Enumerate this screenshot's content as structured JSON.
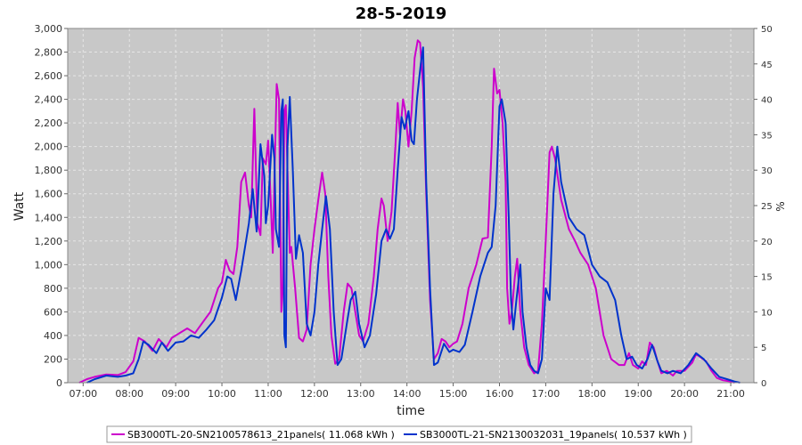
{
  "chart_data": {
    "type": "line",
    "title": "28-5-2019",
    "xlabel": "time",
    "ylabel": "Watt",
    "y2label": "%",
    "xlim": [
      "06:40",
      "21:30"
    ],
    "ylim": [
      0,
      3000
    ],
    "y2lim": [
      0,
      50
    ],
    "grid": true,
    "legend_position": "bottom",
    "x_ticks": [
      "07:00",
      "08:00",
      "09:00",
      "10:00",
      "11:00",
      "12:00",
      "13:00",
      "14:00",
      "15:00",
      "16:00",
      "17:00",
      "18:00",
      "19:00",
      "20:00",
      "21:00"
    ],
    "y_ticks": [
      "0",
      "200",
      "400",
      "600",
      "800",
      "1,000",
      "1,200",
      "1,400",
      "1,600",
      "1,800",
      "2,000",
      "2,200",
      "2,400",
      "2,600",
      "2,800",
      "3,000"
    ],
    "y2_ticks": [
      "0",
      "5",
      "10",
      "15",
      "20",
      "25",
      "30",
      "35",
      "40",
      "45",
      "50"
    ],
    "colors": {
      "plot_background": "#c8c8c8",
      "grid": "#e6e6e6"
    },
    "series": [
      {
        "name": "SB3000TL-20-SN2100578613_21panels( 11.068 kWh )",
        "color": "#cc00cc",
        "points": [
          [
            "06:55",
            0
          ],
          [
            "07:05",
            30
          ],
          [
            "07:15",
            50
          ],
          [
            "07:30",
            70
          ],
          [
            "07:45",
            65
          ],
          [
            "07:55",
            90
          ],
          [
            "08:05",
            180
          ],
          [
            "08:12",
            380
          ],
          [
            "08:20",
            350
          ],
          [
            "08:30",
            270
          ],
          [
            "08:38",
            370
          ],
          [
            "08:48",
            300
          ],
          [
            "08:55",
            380
          ],
          [
            "09:05",
            420
          ],
          [
            "09:15",
            460
          ],
          [
            "09:25",
            420
          ],
          [
            "09:35",
            510
          ],
          [
            "09:45",
            600
          ],
          [
            "09:55",
            800
          ],
          [
            "10:00",
            850
          ],
          [
            "10:05",
            1040
          ],
          [
            "10:10",
            950
          ],
          [
            "10:15",
            920
          ],
          [
            "10:20",
            1150
          ],
          [
            "10:25",
            1700
          ],
          [
            "10:30",
            1780
          ],
          [
            "10:35",
            1500
          ],
          [
            "10:38",
            1400
          ],
          [
            "10:42",
            2320
          ],
          [
            "10:46",
            1350
          ],
          [
            "10:50",
            1250
          ],
          [
            "10:53",
            1900
          ],
          [
            "10:57",
            1850
          ],
          [
            "11:00",
            2050
          ],
          [
            "11:03",
            1600
          ],
          [
            "11:06",
            1100
          ],
          [
            "11:08",
            1700
          ],
          [
            "11:11",
            2530
          ],
          [
            "11:14",
            2400
          ],
          [
            "11:17",
            600
          ],
          [
            "11:19",
            800
          ],
          [
            "11:21",
            2300
          ],
          [
            "11:23",
            2350
          ],
          [
            "11:25",
            1800
          ],
          [
            "11:28",
            1100
          ],
          [
            "11:30",
            1150
          ],
          [
            "11:35",
            800
          ],
          [
            "11:40",
            380
          ],
          [
            "11:45",
            350
          ],
          [
            "11:50",
            450
          ],
          [
            "11:55",
            1000
          ],
          [
            "12:00",
            1300
          ],
          [
            "12:05",
            1550
          ],
          [
            "12:10",
            1780
          ],
          [
            "12:14",
            1600
          ],
          [
            "12:18",
            900
          ],
          [
            "12:22",
            400
          ],
          [
            "12:27",
            160
          ],
          [
            "12:32",
            200
          ],
          [
            "12:38",
            600
          ],
          [
            "12:43",
            840
          ],
          [
            "12:48",
            800
          ],
          [
            "12:53",
            600
          ],
          [
            "12:58",
            400
          ],
          [
            "13:03",
            350
          ],
          [
            "13:10",
            500
          ],
          [
            "13:17",
            900
          ],
          [
            "13:22",
            1300
          ],
          [
            "13:27",
            1560
          ],
          [
            "13:30",
            1500
          ],
          [
            "13:35",
            1200
          ],
          [
            "13:40",
            1450
          ],
          [
            "13:45",
            2000
          ],
          [
            "13:48",
            2370
          ],
          [
            "13:51",
            2100
          ],
          [
            "13:55",
            2400
          ],
          [
            "13:58",
            2300
          ],
          [
            "14:02",
            2000
          ],
          [
            "14:06",
            2300
          ],
          [
            "14:10",
            2750
          ],
          [
            "14:14",
            2900
          ],
          [
            "14:17",
            2880
          ],
          [
            "14:21",
            2500
          ],
          [
            "14:25",
            1600
          ],
          [
            "14:30",
            700
          ],
          [
            "14:35",
            200
          ],
          [
            "14:40",
            250
          ],
          [
            "14:45",
            370
          ],
          [
            "14:50",
            350
          ],
          [
            "14:55",
            300
          ],
          [
            "15:00",
            330
          ],
          [
            "15:05",
            350
          ],
          [
            "15:12",
            500
          ],
          [
            "15:20",
            800
          ],
          [
            "15:30",
            1000
          ],
          [
            "15:38",
            1220
          ],
          [
            "15:45",
            1230
          ],
          [
            "15:50",
            2000
          ],
          [
            "15:53",
            2660
          ],
          [
            "15:57",
            2450
          ],
          [
            "16:00",
            2480
          ],
          [
            "16:04",
            2200
          ],
          [
            "16:08",
            1700
          ],
          [
            "16:10",
            800
          ],
          [
            "16:13",
            500
          ],
          [
            "16:16",
            600
          ],
          [
            "16:20",
            900
          ],
          [
            "16:23",
            1050
          ],
          [
            "16:27",
            600
          ],
          [
            "16:32",
            300
          ],
          [
            "16:38",
            150
          ],
          [
            "16:45",
            80
          ],
          [
            "16:50",
            100
          ],
          [
            "16:55",
            500
          ],
          [
            "17:00",
            1200
          ],
          [
            "17:05",
            1950
          ],
          [
            "17:08",
            2000
          ],
          [
            "17:12",
            1900
          ],
          [
            "17:20",
            1550
          ],
          [
            "17:30",
            1300
          ],
          [
            "17:38",
            1200
          ],
          [
            "17:45",
            1100
          ],
          [
            "17:55",
            1000
          ],
          [
            "18:05",
            800
          ],
          [
            "18:15",
            400
          ],
          [
            "18:25",
            200
          ],
          [
            "18:35",
            150
          ],
          [
            "18:42",
            150
          ],
          [
            "18:48",
            250
          ],
          [
            "18:53",
            150
          ],
          [
            "19:00",
            120
          ],
          [
            "19:05",
            180
          ],
          [
            "19:10",
            150
          ],
          [
            "19:15",
            340
          ],
          [
            "19:20",
            300
          ],
          [
            "19:25",
            180
          ],
          [
            "19:30",
            80
          ],
          [
            "19:37",
            100
          ],
          [
            "19:45",
            60
          ],
          [
            "19:50",
            100
          ],
          [
            "20:00",
            100
          ],
          [
            "20:10",
            170
          ],
          [
            "20:15",
            240
          ],
          [
            "20:20",
            220
          ],
          [
            "20:28",
            180
          ],
          [
            "20:35",
            100
          ],
          [
            "20:42",
            40
          ],
          [
            "20:50",
            20
          ],
          [
            "21:00",
            10
          ],
          [
            "21:05",
            0
          ]
        ]
      },
      {
        "name": "SB3000TL-21-SN2130032031_19panels( 10.537 kWh )",
        "color": "#0033cc",
        "points": [
          [
            "07:05",
            0
          ],
          [
            "07:15",
            30
          ],
          [
            "07:30",
            60
          ],
          [
            "07:45",
            50
          ],
          [
            "07:55",
            60
          ],
          [
            "08:05",
            80
          ],
          [
            "08:12",
            200
          ],
          [
            "08:18",
            350
          ],
          [
            "08:25",
            320
          ],
          [
            "08:35",
            250
          ],
          [
            "08:42",
            340
          ],
          [
            "08:50",
            270
          ],
          [
            "09:00",
            340
          ],
          [
            "09:10",
            350
          ],
          [
            "09:20",
            400
          ],
          [
            "09:30",
            380
          ],
          [
            "09:40",
            450
          ],
          [
            "09:50",
            530
          ],
          [
            "10:00",
            720
          ],
          [
            "10:07",
            900
          ],
          [
            "10:12",
            880
          ],
          [
            "10:18",
            700
          ],
          [
            "10:25",
            950
          ],
          [
            "10:35",
            1350
          ],
          [
            "10:40",
            1640
          ],
          [
            "10:45",
            1280
          ],
          [
            "10:50",
            2020
          ],
          [
            "10:55",
            1750
          ],
          [
            "10:57",
            1350
          ],
          [
            "11:00",
            1500
          ],
          [
            "11:05",
            2100
          ],
          [
            "11:08",
            1900
          ],
          [
            "11:10",
            1300
          ],
          [
            "11:14",
            1150
          ],
          [
            "11:17",
            2300
          ],
          [
            "11:19",
            2400
          ],
          [
            "11:21",
            400
          ],
          [
            "11:23",
            300
          ],
          [
            "11:25",
            2000
          ],
          [
            "11:28",
            2420
          ],
          [
            "11:32",
            1800
          ],
          [
            "11:36",
            1050
          ],
          [
            "11:40",
            1250
          ],
          [
            "11:45",
            1100
          ],
          [
            "11:50",
            500
          ],
          [
            "11:55",
            400
          ],
          [
            "12:00",
            600
          ],
          [
            "12:05",
            1000
          ],
          [
            "12:10",
            1300
          ],
          [
            "12:15",
            1580
          ],
          [
            "12:20",
            1300
          ],
          [
            "12:25",
            600
          ],
          [
            "12:30",
            150
          ],
          [
            "12:35",
            200
          ],
          [
            "12:42",
            500
          ],
          [
            "12:47",
            700
          ],
          [
            "12:53",
            770
          ],
          [
            "12:58",
            500
          ],
          [
            "13:05",
            300
          ],
          [
            "13:12",
            400
          ],
          [
            "13:20",
            750
          ],
          [
            "13:27",
            1200
          ],
          [
            "13:33",
            1300
          ],
          [
            "13:38",
            1220
          ],
          [
            "13:43",
            1300
          ],
          [
            "13:48",
            1800
          ],
          [
            "13:53",
            2250
          ],
          [
            "13:57",
            2150
          ],
          [
            "14:02",
            2300
          ],
          [
            "14:06",
            2050
          ],
          [
            "14:09",
            2020
          ],
          [
            "14:13",
            2400
          ],
          [
            "14:18",
            2700
          ],
          [
            "14:21",
            2840
          ],
          [
            "14:25",
            1700
          ],
          [
            "14:30",
            800
          ],
          [
            "14:35",
            150
          ],
          [
            "14:40",
            170
          ],
          [
            "14:48",
            330
          ],
          [
            "14:55",
            260
          ],
          [
            "15:00",
            280
          ],
          [
            "15:08",
            260
          ],
          [
            "15:15",
            320
          ],
          [
            "15:25",
            600
          ],
          [
            "15:35",
            900
          ],
          [
            "15:45",
            1100
          ],
          [
            "15:50",
            1150
          ],
          [
            "15:55",
            1500
          ],
          [
            "16:00",
            2340
          ],
          [
            "16:03",
            2400
          ],
          [
            "16:08",
            2200
          ],
          [
            "16:12",
            1400
          ],
          [
            "16:15",
            700
          ],
          [
            "16:18",
            450
          ],
          [
            "16:22",
            700
          ],
          [
            "16:27",
            1000
          ],
          [
            "16:30",
            600
          ],
          [
            "16:35",
            300
          ],
          [
            "16:40",
            150
          ],
          [
            "16:45",
            100
          ],
          [
            "16:50",
            80
          ],
          [
            "16:55",
            200
          ],
          [
            "17:00",
            800
          ],
          [
            "17:05",
            700
          ],
          [
            "17:10",
            1600
          ],
          [
            "17:15",
            2000
          ],
          [
            "17:20",
            1700
          ],
          [
            "17:30",
            1400
          ],
          [
            "17:40",
            1300
          ],
          [
            "17:50",
            1250
          ],
          [
            "18:00",
            1000
          ],
          [
            "18:10",
            900
          ],
          [
            "18:20",
            850
          ],
          [
            "18:30",
            700
          ],
          [
            "18:38",
            400
          ],
          [
            "18:45",
            200
          ],
          [
            "18:52",
            220
          ],
          [
            "18:58",
            150
          ],
          [
            "19:05",
            120
          ],
          [
            "19:12",
            200
          ],
          [
            "19:18",
            320
          ],
          [
            "19:25",
            180
          ],
          [
            "19:30",
            100
          ],
          [
            "19:38",
            80
          ],
          [
            "19:45",
            100
          ],
          [
            "19:55",
            80
          ],
          [
            "20:05",
            150
          ],
          [
            "20:15",
            250
          ],
          [
            "20:25",
            200
          ],
          [
            "20:35",
            120
          ],
          [
            "20:45",
            50
          ],
          [
            "20:55",
            30
          ],
          [
            "21:05",
            10
          ],
          [
            "21:12",
            0
          ]
        ]
      }
    ]
  }
}
